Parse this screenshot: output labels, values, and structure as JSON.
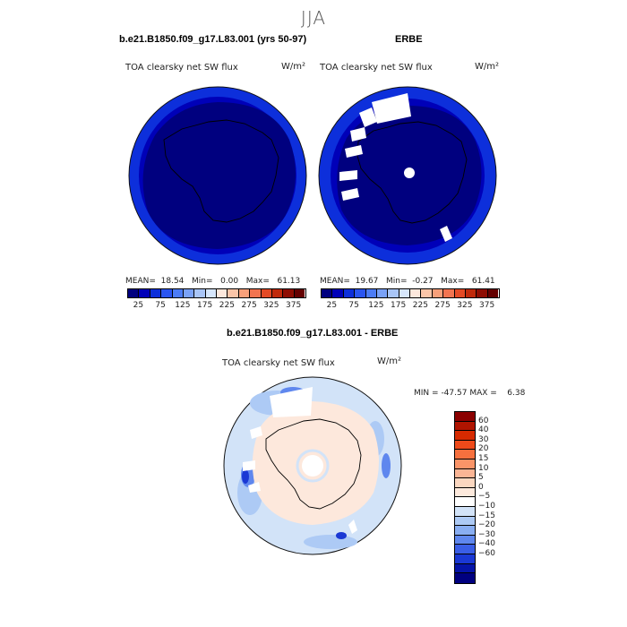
{
  "header": {
    "season": "JJA",
    "model_case": "b.e21.B1850.f09_g17.L83.001 (yrs 50-97)",
    "obs_name": "ERBE",
    "diff_title": "b.e21.B1850.f09_g17.L83.001 - ERBE"
  },
  "panels": {
    "model": {
      "variable": "TOA clearsky net SW flux",
      "units": "W/m²",
      "mean_label": "MEAN=",
      "mean": "18.54",
      "min_label": "Min=",
      "min": "0.00",
      "max_label": "Max=",
      "max": "61.13"
    },
    "obs": {
      "variable": "TOA clearsky net SW flux",
      "units": "W/m²",
      "mean_label": "MEAN=",
      "mean": "19.67",
      "min_label": "Min=",
      "min": "-0.27",
      "max_label": "Max=",
      "max": "61.41"
    },
    "diff": {
      "variable": "TOA clearsky net SW flux",
      "units": "W/m²",
      "min_label": "MIN =",
      "min": "-47.57",
      "max_label": "MAX =",
      "max": "6.38"
    }
  },
  "colorbar_abs": {
    "colors": [
      "#00007f",
      "#0000b8",
      "#0d2fdb",
      "#2a55f0",
      "#4c7cf5",
      "#7aa2f7",
      "#a9c5f6",
      "#d6e6fb",
      "#fde8dc",
      "#fbc5a8",
      "#f8a07a",
      "#f27450",
      "#e44a25",
      "#c02a0b",
      "#8e0d02",
      "#640000"
    ],
    "ticks": [
      "25",
      "75",
      "125",
      "175",
      "225",
      "275",
      "325",
      "375"
    ]
  },
  "colorbar_diff": {
    "colors": [
      "#8b0000",
      "#b01400",
      "#d62a00",
      "#ee4a1a",
      "#f6703e",
      "#fa9468",
      "#fbb595",
      "#fbd7c0",
      "#fde9dc",
      "#ffffff",
      "#d2e3f8",
      "#adcaf5",
      "#89aef2",
      "#5f87ee",
      "#3a5ee6",
      "#1a38d4",
      "#0514a8",
      "#000080"
    ],
    "labels": [
      "60",
      "40",
      "30",
      "20",
      "15",
      "10",
      "5",
      "0",
      "−5",
      "−10",
      "−15",
      "−20",
      "−30",
      "−40",
      "−60"
    ]
  },
  "colors": {
    "deep_blue": "#00007f",
    "ring_blue": "#0d2fdb",
    "missing": "#ffffff",
    "diff_positive": "#fde8dc",
    "diff_light_blue": "#d2e3f8"
  }
}
